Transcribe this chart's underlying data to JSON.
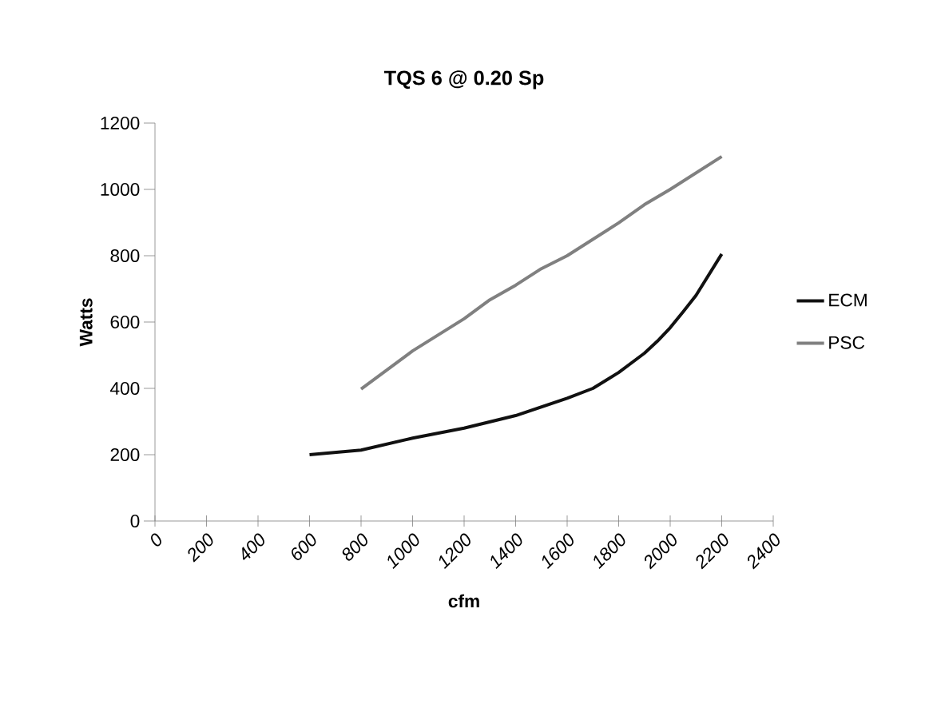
{
  "chart_data": {
    "type": "line",
    "title": "TQS 6 @ 0.20 Sp",
    "xlabel": "cfm",
    "ylabel": "Watts",
    "xlim": [
      0,
      2400
    ],
    "xticks": [
      0,
      200,
      400,
      600,
      800,
      1000,
      1200,
      1400,
      1600,
      1800,
      2000,
      2200,
      2400
    ],
    "ylim": [
      0,
      1200
    ],
    "yticks": [
      0,
      200,
      400,
      600,
      800,
      1000,
      1200
    ],
    "legend": "right",
    "grid": false,
    "marker": "none",
    "line_style": "solid",
    "series": [
      {
        "name": "ECM",
        "color": "#111111",
        "x": [
          600,
          800,
          1000,
          1200,
          1400,
          1600,
          1700,
          1800,
          1900,
          1950,
          2000,
          2050,
          2100,
          2200
        ],
        "values": [
          200,
          214,
          250,
          280,
          318,
          370,
          400,
          448,
          506,
          542,
          583,
          631,
          680,
          805
        ]
      },
      {
        "name": "PSC",
        "color": "#808080",
        "x": [
          800,
          1000,
          1200,
          1300,
          1400,
          1500,
          1600,
          1800,
          1900,
          2000,
          2200
        ],
        "values": [
          398,
          513,
          610,
          667,
          711,
          761,
          800,
          899,
          954,
          1000,
          1099
        ]
      }
    ]
  }
}
